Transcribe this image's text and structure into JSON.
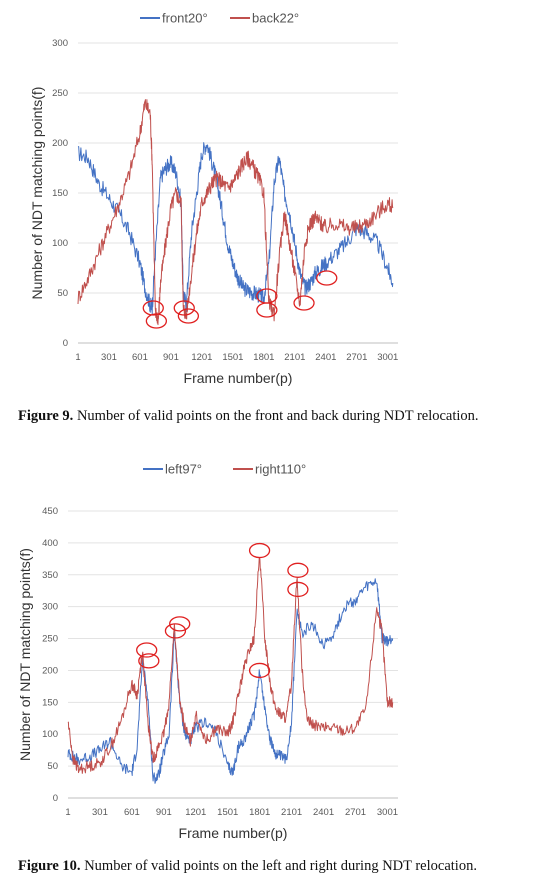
{
  "figures": [
    {
      "caption_label": "Figure 9.",
      "caption_text": " Number of valid points on the front and back during NDT relocation.",
      "chart_data": {
        "type": "line",
        "xlabel": "Frame number(p)",
        "ylabel": "Number of NDT matching points(f)",
        "xlim": [
          1,
          3100
        ],
        "ylim": [
          0,
          300
        ],
        "x_ticks": [
          "1",
          "301",
          "601",
          "901",
          "1201",
          "1501",
          "1801",
          "2101",
          "2401",
          "2701",
          "3001"
        ],
        "y_ticks": [
          "0",
          "50",
          "100",
          "150",
          "200",
          "250",
          "300"
        ],
        "legend_position": "top",
        "series": [
          {
            "name": "front20°",
            "color": "#4472C4",
            "x": [
              1,
              100,
              200,
              300,
              400,
              500,
              600,
              650,
              700,
              720,
              750,
              800,
              850,
              900,
              950,
              1000,
              1020,
              1050,
              1100,
              1150,
              1200,
              1250,
              1300,
              1350,
              1400,
              1450,
              1500,
              1550,
              1600,
              1650,
              1700,
              1750,
              1800,
              1850,
              1900,
              1950,
              2000,
              2050,
              2100,
              2150,
              2200,
              2250,
              2300,
              2350,
              2400,
              2500,
              2600,
              2700,
              2800,
              2900,
              3000,
              3050
            ],
            "y": [
              190,
              185,
              160,
              145,
              130,
              110,
              80,
              55,
              38,
              36,
              90,
              165,
              175,
              180,
              170,
              140,
              50,
              38,
              110,
              150,
              190,
              200,
              180,
              160,
              130,
              100,
              80,
              65,
              55,
              52,
              50,
              48,
              45,
              80,
              160,
              185,
              150,
              130,
              100,
              70,
              55,
              60,
              70,
              75,
              80,
              90,
              100,
              115,
              110,
              100,
              75,
              60
            ]
          },
          {
            "name": "back22°",
            "color": "#C0504D",
            "x": [
              1,
              100,
              200,
              300,
              400,
              500,
              600,
              650,
              700,
              720,
              750,
              780,
              800,
              850,
              900,
              950,
              1000,
              1020,
              1050,
              1100,
              1150,
              1200,
              1250,
              1300,
              1350,
              1400,
              1450,
              1500,
              1550,
              1600,
              1650,
              1700,
              1750,
              1800,
              1850,
              1900,
              1950,
              2000,
              2050,
              2100,
              2150,
              2200,
              2250,
              2300,
              2350,
              2400,
              2500,
              2600,
              2700,
              2800,
              2900,
              3000,
              3050
            ],
            "y": [
              45,
              65,
              90,
              115,
              140,
              170,
              210,
              240,
              230,
              180,
              30,
              25,
              60,
              100,
              135,
              150,
              140,
              35,
              28,
              70,
              110,
              140,
              150,
              160,
              165,
              160,
              155,
              160,
              170,
              180,
              185,
              175,
              165,
              150,
              40,
              30,
              85,
              130,
              100,
              70,
              40,
              100,
              120,
              125,
              120,
              115,
              120,
              115,
              115,
              120,
              130,
              140,
              135
            ]
          }
        ],
        "annotations": [
          {
            "shape": "ellipse",
            "x": 730,
            "y": 35
          },
          {
            "shape": "ellipse",
            "x": 760,
            "y": 22
          },
          {
            "shape": "ellipse",
            "x": 1030,
            "y": 35
          },
          {
            "shape": "ellipse",
            "x": 1070,
            "y": 27
          },
          {
            "shape": "ellipse",
            "x": 1830,
            "y": 47
          },
          {
            "shape": "ellipse",
            "x": 1830,
            "y": 33
          },
          {
            "shape": "ellipse",
            "x": 2190,
            "y": 40
          },
          {
            "shape": "ellipse",
            "x": 2410,
            "y": 65
          }
        ]
      }
    },
    {
      "caption_label": "Figure 10.",
      "caption_text": " Number of valid points on the left and right during NDT relocation.",
      "chart_data": {
        "type": "line",
        "xlabel": "Frame number(p)",
        "ylabel": "Number of NDT matching points(f)",
        "xlim": [
          1,
          3100
        ],
        "ylim": [
          0,
          450
        ],
        "x_ticks": [
          "1",
          "301",
          "601",
          "901",
          "1201",
          "1501",
          "1801",
          "2101",
          "2401",
          "2701",
          "3001"
        ],
        "y_ticks": [
          "0",
          "50",
          "100",
          "150",
          "200",
          "250",
          "300",
          "350",
          "400",
          "450"
        ],
        "legend_position": "top",
        "series": [
          {
            "name": "left97°",
            "color": "#4472C4",
            "x": [
              1,
              50,
              100,
              200,
              300,
              400,
              500,
              600,
              650,
              700,
              750,
              800,
              850,
              900,
              950,
              1000,
              1050,
              1100,
              1150,
              1200,
              1300,
              1400,
              1500,
              1550,
              1600,
              1650,
              1700,
              1750,
              1800,
              1850,
              1900,
              1950,
              2000,
              2050,
              2100,
              2150,
              2200,
              2300,
              2400,
              2500,
              2600,
              2700,
              2800,
              2900,
              2950,
              3000,
              3050
            ],
            "y": [
              70,
              65,
              60,
              65,
              75,
              90,
              50,
              40,
              80,
              215,
              160,
              30,
              35,
              70,
              100,
              260,
              150,
              100,
              90,
              110,
              120,
              100,
              50,
              40,
              80,
              90,
              110,
              130,
              200,
              140,
              90,
              70,
              65,
              60,
              120,
              290,
              260,
              270,
              240,
              260,
              300,
              310,
              330,
              340,
              250,
              245,
              250
            ]
          },
          {
            "name": "right110°",
            "color": "#C0504D",
            "x": [
              1,
              50,
              100,
              200,
              300,
              400,
              500,
              600,
              650,
              700,
              750,
              800,
              850,
              900,
              950,
              1000,
              1050,
              1100,
              1150,
              1200,
              1300,
              1400,
              1500,
              1550,
              1600,
              1650,
              1700,
              1750,
              1800,
              1850,
              1900,
              1950,
              2000,
              2050,
              2100,
              2150,
              2200,
              2250,
              2300,
              2400,
              2500,
              2600,
              2700,
              2800,
              2900,
              2950,
              3000,
              3050
            ],
            "y": [
              120,
              60,
              45,
              50,
              55,
              80,
              120,
              180,
              160,
              230,
              120,
              60,
              80,
              100,
              150,
              270,
              150,
              110,
              90,
              130,
              90,
              110,
              100,
              120,
              160,
              200,
              230,
              250,
              385,
              250,
              180,
              140,
              130,
              125,
              180,
              350,
              200,
              120,
              115,
              110,
              110,
              105,
              110,
              140,
              300,
              260,
              150,
              150
            ]
          }
        ],
        "annotations": [
          {
            "shape": "ellipse",
            "x": 740,
            "y": 232
          },
          {
            "shape": "ellipse",
            "x": 760,
            "y": 215
          },
          {
            "shape": "ellipse",
            "x": 1010,
            "y": 262
          },
          {
            "shape": "ellipse",
            "x": 1050,
            "y": 273
          },
          {
            "shape": "ellipse",
            "x": 1800,
            "y": 388
          },
          {
            "shape": "ellipse",
            "x": 1800,
            "y": 200
          },
          {
            "shape": "ellipse",
            "x": 2160,
            "y": 357
          },
          {
            "shape": "ellipse",
            "x": 2160,
            "y": 327
          }
        ]
      }
    }
  ]
}
